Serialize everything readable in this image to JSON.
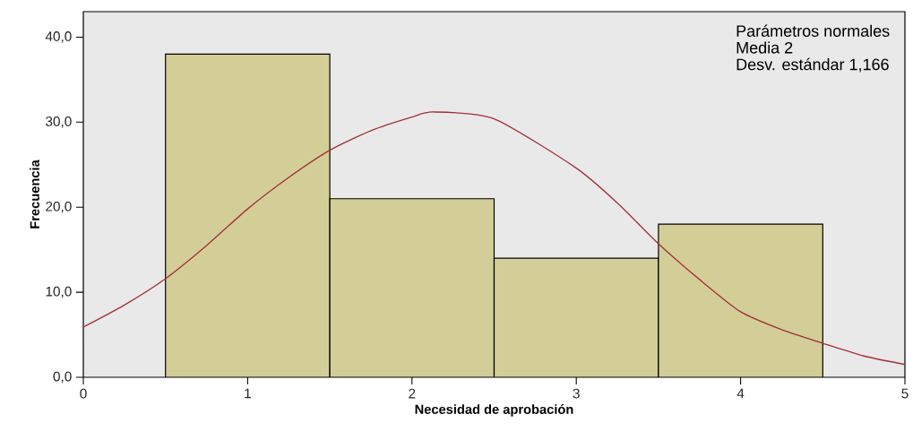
{
  "chart_data": {
    "type": "histogram",
    "xlabel": "Necesidad de aprobación",
    "ylabel": "Frecuencia",
    "annotations": [
      "Parámetros normales",
      "Media 2",
      "Desv. estándar 1,166"
    ],
    "bins": [
      0.5,
      1.5,
      2.5,
      3.5,
      4.5
    ],
    "values": [
      38,
      21,
      14,
      18
    ],
    "color": "#d3ce97",
    "series": [
      {
        "type": "line",
        "color": "#a3303a",
        "x": [
          0,
          0.25,
          0.5,
          0.75,
          1,
          1.25,
          1.5,
          1.75,
          2,
          2.13,
          2.5,
          3,
          3.25,
          3.5,
          3.75,
          4,
          4.25,
          4.5,
          4.75,
          5
        ],
        "values": [
          5.9,
          8.5,
          11.6,
          15.5,
          19.8,
          23.5,
          26.7,
          29,
          30.6,
          31.2,
          30.4,
          24.6,
          20.5,
          15.7,
          11.5,
          7.7,
          5.6,
          4.0,
          2.5,
          1.5
        ]
      }
    ],
    "xlim": [
      0,
      5
    ],
    "ylim": [
      0,
      43
    ],
    "xticks": [
      0,
      1,
      2,
      3,
      4,
      5
    ],
    "yticks": [
      {
        "value": 0,
        "label": "0,0"
      },
      {
        "value": 10,
        "label": "10,0"
      },
      {
        "value": 20,
        "label": "20,0"
      },
      {
        "value": 30,
        "label": "30,0"
      },
      {
        "value": 40,
        "label": "40,0"
      }
    ],
    "grid": false
  }
}
